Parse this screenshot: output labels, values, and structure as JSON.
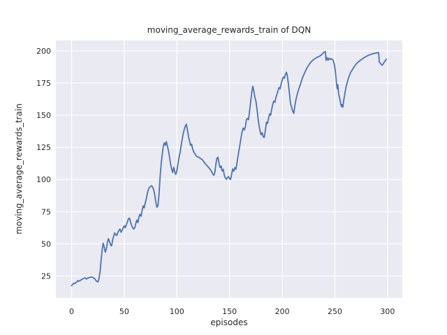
{
  "chart_data": {
    "type": "line",
    "title": "moving_average_rewards_train of DQN",
    "xlabel": "episodes",
    "ylabel": "moving_average_rewards_train",
    "xlim": [
      -14.9,
      314.0
    ],
    "ylim": [
      7.9,
      208.1
    ],
    "xticks": [
      0,
      50,
      100,
      150,
      200,
      250,
      300
    ],
    "yticks": [
      25,
      50,
      75,
      100,
      125,
      150,
      175,
      200
    ],
    "grid": true,
    "legend_position": "none",
    "colors": {
      "line": "#4C72B0",
      "axes_background": "#EAEAF2",
      "grid": "#FFFFFF",
      "text": "#262626",
      "figure_background": "#FFFFFF"
    },
    "series": [
      {
        "name": "moving_average_rewards_train",
        "points": [
          [
            0,
            17.5
          ],
          [
            1,
            18.4
          ],
          [
            2,
            19.4
          ],
          [
            3,
            19.0
          ],
          [
            4,
            19.9
          ],
          [
            5,
            20.4
          ],
          [
            6,
            21.5
          ],
          [
            7,
            20.9
          ],
          [
            8,
            21.4
          ],
          [
            9,
            22.0
          ],
          [
            10,
            22.4
          ],
          [
            11,
            23.1
          ],
          [
            12,
            23.4
          ],
          [
            13,
            23.6
          ],
          [
            14,
            22.6
          ],
          [
            15,
            23.2
          ],
          [
            16,
            23.6
          ],
          [
            18,
            24.1
          ],
          [
            19,
            24.2
          ],
          [
            20,
            24.0
          ],
          [
            21,
            23.4
          ],
          [
            22,
            23.0
          ],
          [
            23,
            21.6
          ],
          [
            24,
            20.8
          ],
          [
            25,
            20.4
          ],
          [
            26,
            23.0
          ],
          [
            27,
            28.0
          ],
          [
            28,
            37.0
          ],
          [
            29,
            45.0
          ],
          [
            30,
            50.5
          ],
          [
            31,
            47.5
          ],
          [
            32,
            43.5
          ],
          [
            33,
            46.0
          ],
          [
            34,
            51.0
          ],
          [
            35,
            54.0
          ],
          [
            36,
            52.0
          ],
          [
            37,
            49.0
          ],
          [
            38,
            48.5
          ],
          [
            39,
            53.0
          ],
          [
            40,
            56.0
          ],
          [
            41,
            58.5
          ],
          [
            42,
            57.0
          ],
          [
            43,
            56.5
          ],
          [
            44,
            59.0
          ],
          [
            45,
            60.5
          ],
          [
            46,
            61.5
          ],
          [
            47,
            59.0
          ],
          [
            48,
            60.5
          ],
          [
            49,
            62.5
          ],
          [
            50,
            64.0
          ],
          [
            51,
            62.5
          ],
          [
            52,
            65.0
          ],
          [
            53,
            67.0
          ],
          [
            54,
            69.5
          ],
          [
            55,
            70.0
          ],
          [
            56,
            67.0
          ],
          [
            57,
            64.5
          ],
          [
            58,
            62.5
          ],
          [
            59,
            61.5
          ],
          [
            60,
            62.5
          ],
          [
            61,
            66.0
          ],
          [
            62,
            68.5
          ],
          [
            63,
            66.5
          ],
          [
            64,
            71.0
          ],
          [
            65,
            73.0
          ],
          [
            66,
            71.5
          ],
          [
            67,
            76.0
          ],
          [
            68,
            79.5
          ],
          [
            69,
            78.0
          ],
          [
            70,
            82.0
          ],
          [
            71,
            85.0
          ],
          [
            72,
            89.5
          ],
          [
            73,
            92.5
          ],
          [
            74,
            94.0
          ],
          [
            75,
            94.5
          ],
          [
            76,
            95.2
          ],
          [
            77,
            94.0
          ],
          [
            78,
            92.0
          ],
          [
            79,
            88.0
          ],
          [
            80,
            82.5
          ],
          [
            81,
            78.5
          ],
          [
            82,
            79.5
          ],
          [
            83,
            88.0
          ],
          [
            84,
            101.0
          ],
          [
            85,
            112.0
          ],
          [
            86,
            119.0
          ],
          [
            87,
            125.5
          ],
          [
            88,
            128.5
          ],
          [
            89,
            126.5
          ],
          [
            90,
            129.5
          ],
          [
            91,
            126.0
          ],
          [
            92,
            122.5
          ],
          [
            93,
            117.5
          ],
          [
            94,
            112.0
          ],
          [
            95,
            108.5
          ],
          [
            96,
            105.5
          ],
          [
            97,
            109.5
          ],
          [
            98,
            105.5
          ],
          [
            99,
            104.0
          ],
          [
            100,
            107.0
          ],
          [
            101,
            112.0
          ],
          [
            102,
            117.0
          ],
          [
            103,
            121.0
          ],
          [
            104,
            126.0
          ],
          [
            105,
            131.0
          ],
          [
            106,
            135.5
          ],
          [
            107,
            139.0
          ],
          [
            108,
            141.5
          ],
          [
            109,
            143.0
          ],
          [
            110,
            138.5
          ],
          [
            111,
            133.5
          ],
          [
            112,
            130.0
          ],
          [
            113,
            126.5
          ],
          [
            114,
            127.5
          ],
          [
            115,
            123.5
          ],
          [
            116,
            121.5
          ],
          [
            117,
            120.3
          ],
          [
            118,
            118.8
          ],
          [
            119,
            118.0
          ],
          [
            120,
            117.6
          ],
          [
            121,
            117.2
          ],
          [
            122,
            116.5
          ],
          [
            124,
            115.6
          ],
          [
            125,
            114.5
          ],
          [
            126,
            113.2
          ],
          [
            127,
            112.2
          ],
          [
            128,
            111.4
          ],
          [
            129,
            110.4
          ],
          [
            130,
            109.5
          ],
          [
            131,
            108.5
          ],
          [
            132,
            107.5
          ],
          [
            133,
            106.0
          ],
          [
            134,
            104.4
          ],
          [
            135,
            103.3
          ],
          [
            136,
            105.5
          ],
          [
            137,
            112.0
          ],
          [
            138,
            116.5
          ],
          [
            139,
            117.4
          ],
          [
            140,
            112.5
          ],
          [
            141,
            109.3
          ],
          [
            142,
            110.5
          ],
          [
            143,
            106.6
          ],
          [
            144,
            108.0
          ],
          [
            145,
            103.5
          ],
          [
            146,
            101.2
          ],
          [
            147,
            100.2
          ],
          [
            148,
            101.5
          ],
          [
            149,
            102.3
          ],
          [
            150,
            100.6
          ],
          [
            151,
            100.1
          ],
          [
            152,
            104.5
          ],
          [
            153,
            108.2
          ],
          [
            154,
            106.5
          ],
          [
            155,
            109.3
          ],
          [
            156,
            108.0
          ],
          [
            157,
            112.5
          ],
          [
            158,
            118.0
          ],
          [
            159,
            123.0
          ],
          [
            160,
            128.0
          ],
          [
            161,
            133.0
          ],
          [
            162,
            137.5
          ],
          [
            163,
            140.0
          ],
          [
            164,
            138.5
          ],
          [
            165,
            141.0
          ],
          [
            166,
            146.5
          ],
          [
            167,
            147.5
          ],
          [
            168,
            146.5
          ],
          [
            169,
            153.0
          ],
          [
            170,
            160.0
          ],
          [
            171,
            167.0
          ],
          [
            172,
            172.5
          ],
          [
            173,
            169.0
          ],
          [
            174,
            164.0
          ],
          [
            175,
            161.0
          ],
          [
            176,
            155.0
          ],
          [
            177,
            148.0
          ],
          [
            178,
            142.0
          ],
          [
            179,
            137.5
          ],
          [
            180,
            134.8
          ],
          [
            181,
            136.4
          ],
          [
            182,
            133.2
          ],
          [
            183,
            132.8
          ],
          [
            184,
            138.5
          ],
          [
            185,
            144.5
          ],
          [
            186,
            143.6
          ],
          [
            187,
            147.5
          ],
          [
            188,
            151.0
          ],
          [
            189,
            150.0
          ],
          [
            190,
            154.5
          ],
          [
            191,
            158.5
          ],
          [
            192,
            161.0
          ],
          [
            193,
            160.0
          ],
          [
            194,
            163.5
          ],
          [
            195,
            166.2
          ],
          [
            196,
            169.0
          ],
          [
            197,
            171.6
          ],
          [
            198,
            170.5
          ],
          [
            199,
            174.5
          ],
          [
            200,
            177.5
          ],
          [
            201,
            179.7
          ],
          [
            202,
            178.8
          ],
          [
            203,
            181.5
          ],
          [
            204,
            183.4
          ],
          [
            205,
            180.0
          ],
          [
            206,
            173.5
          ],
          [
            207,
            166.0
          ],
          [
            208,
            158.5
          ],
          [
            209,
            156.0
          ],
          [
            210,
            153.0
          ],
          [
            211,
            151.5
          ],
          [
            212,
            157.5
          ],
          [
            213,
            162.0
          ],
          [
            214,
            165.5
          ],
          [
            215,
            168.5
          ],
          [
            216,
            171.0
          ],
          [
            217,
            173.3
          ],
          [
            218,
            176.0
          ],
          [
            219,
            178.5
          ],
          [
            220,
            180.5
          ],
          [
            221,
            182.5
          ],
          [
            222,
            184.3
          ],
          [
            223,
            186.0
          ],
          [
            224,
            187.5
          ],
          [
            225,
            188.8
          ],
          [
            226,
            190.0
          ],
          [
            227,
            191.0
          ],
          [
            228,
            192.0
          ],
          [
            229,
            192.8
          ],
          [
            230,
            193.3
          ],
          [
            231,
            194.0
          ],
          [
            232,
            194.5
          ],
          [
            233,
            195.0
          ],
          [
            234,
            195.3
          ],
          [
            235,
            195.7
          ],
          [
            236,
            196.2
          ],
          [
            237,
            196.8
          ],
          [
            238,
            197.6
          ],
          [
            239,
            198.5
          ],
          [
            240,
            199.2
          ],
          [
            241,
            199.4
          ],
          [
            241.6,
            192.7
          ],
          [
            242.5,
            194.9
          ],
          [
            243.5,
            192.7
          ],
          [
            244.5,
            194.3
          ],
          [
            245.5,
            193.4
          ],
          [
            246.5,
            194.0
          ],
          [
            247.5,
            193.3
          ],
          [
            248.5,
            192.4
          ],
          [
            249.5,
            189.5
          ],
          [
            250.5,
            184.0
          ],
          [
            251.5,
            175.5
          ],
          [
            252.2,
            170.5
          ],
          [
            252.8,
            173.7
          ],
          [
            253.6,
            166.5
          ],
          [
            254.5,
            163.0
          ],
          [
            255.5,
            159.0
          ],
          [
            256.3,
            156.6
          ],
          [
            257.0,
            158.3
          ],
          [
            257.5,
            156.3
          ],
          [
            258.5,
            162.0
          ],
          [
            259.5,
            167.0
          ],
          [
            260.5,
            171.5
          ],
          [
            261.5,
            174.8
          ],
          [
            262.5,
            177.8
          ],
          [
            263.5,
            180.2
          ],
          [
            265,
            183.3
          ],
          [
            266.5,
            185.3
          ],
          [
            268,
            187.3
          ],
          [
            270,
            189.6
          ],
          [
            272,
            191.3
          ],
          [
            274,
            192.6
          ],
          [
            276,
            193.8
          ],
          [
            278,
            194.8
          ],
          [
            280,
            195.8
          ],
          [
            282,
            196.6
          ],
          [
            284,
            197.3
          ],
          [
            286,
            197.8
          ],
          [
            288,
            198.2
          ],
          [
            290,
            198.5
          ],
          [
            291.5,
            198.6
          ],
          [
            292.2,
            191.2
          ],
          [
            293,
            190.5
          ],
          [
            294,
            189.4
          ],
          [
            295,
            188.9
          ],
          [
            296,
            190.2
          ],
          [
            297,
            191.5
          ],
          [
            298,
            192.6
          ],
          [
            299,
            193.6
          ]
        ]
      }
    ]
  }
}
